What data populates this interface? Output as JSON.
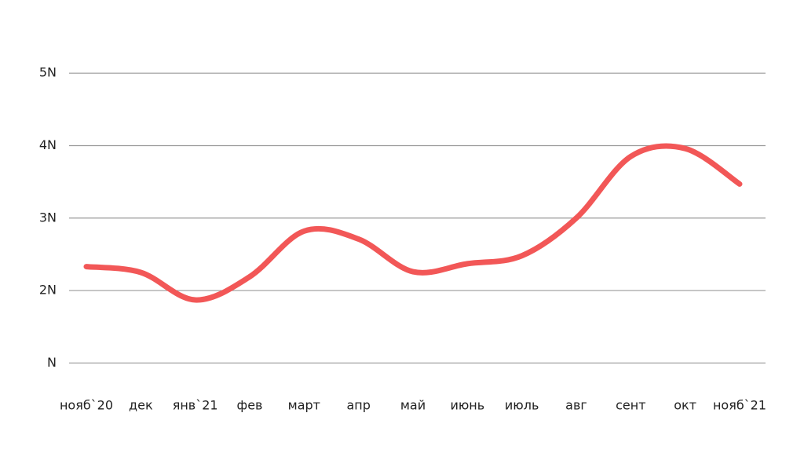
{
  "chart_data": {
    "type": "line",
    "categories": [
      "нояб`20",
      "дек",
      "янв`21",
      "фев",
      "март",
      "апр",
      "май",
      "июнь",
      "июль",
      "авг",
      "сент",
      "окт",
      "нояб`21"
    ],
    "series": [
      {
        "color": "#f25757",
        "values": [
          2.33,
          2.25,
          1.87,
          2.19,
          2.82,
          2.71,
          2.26,
          2.37,
          2.48,
          3.0,
          3.85,
          3.96,
          3.47
        ]
      }
    ],
    "ylim": [
      0.7,
      5.4
    ],
    "yticks": [
      {
        "value": 1,
        "label": "N"
      },
      {
        "value": 2,
        "label": "2N"
      },
      {
        "value": 3,
        "label": "3N"
      },
      {
        "value": 4,
        "label": "4N"
      },
      {
        "value": 5,
        "label": "5N"
      }
    ],
    "grid": true
  }
}
